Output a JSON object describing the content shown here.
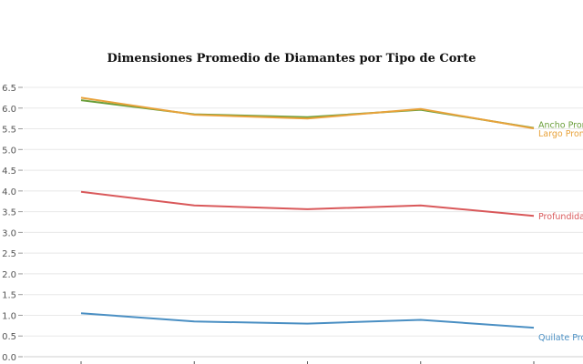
{
  "chart_data": {
    "type": "line",
    "title": "Dimensiones Promedio de Diamantes por Tipo de Corte",
    "xlabel": "",
    "ylabel": "",
    "ylim": [
      0,
      6.5
    ],
    "yticks": [
      "0.0",
      "0.5",
      "1.0",
      "1.5",
      "2.0",
      "2.5",
      "3.0",
      "3.5",
      "4.0",
      "4.5",
      "5.0",
      "5.5",
      "6.0",
      "6.5"
    ],
    "grid": true,
    "legend": "none",
    "series": [
      {
        "name": "Ancho Prom",
        "color": "#6a9e3a",
        "values": [
          6.19,
          5.85,
          5.78,
          5.96,
          5.52
        ]
      },
      {
        "name": "Largo Prom",
        "color": "#e8a23a",
        "values": [
          6.25,
          5.84,
          5.75,
          5.98,
          5.51
        ]
      },
      {
        "name": "Profundidad",
        "color": "#d9585a",
        "values": [
          3.98,
          3.65,
          3.56,
          3.65,
          3.4
        ]
      },
      {
        "name": "Quilate Pro",
        "color": "#4a8fc3",
        "values": [
          1.05,
          0.85,
          0.8,
          0.89,
          0.7
        ]
      }
    ]
  }
}
